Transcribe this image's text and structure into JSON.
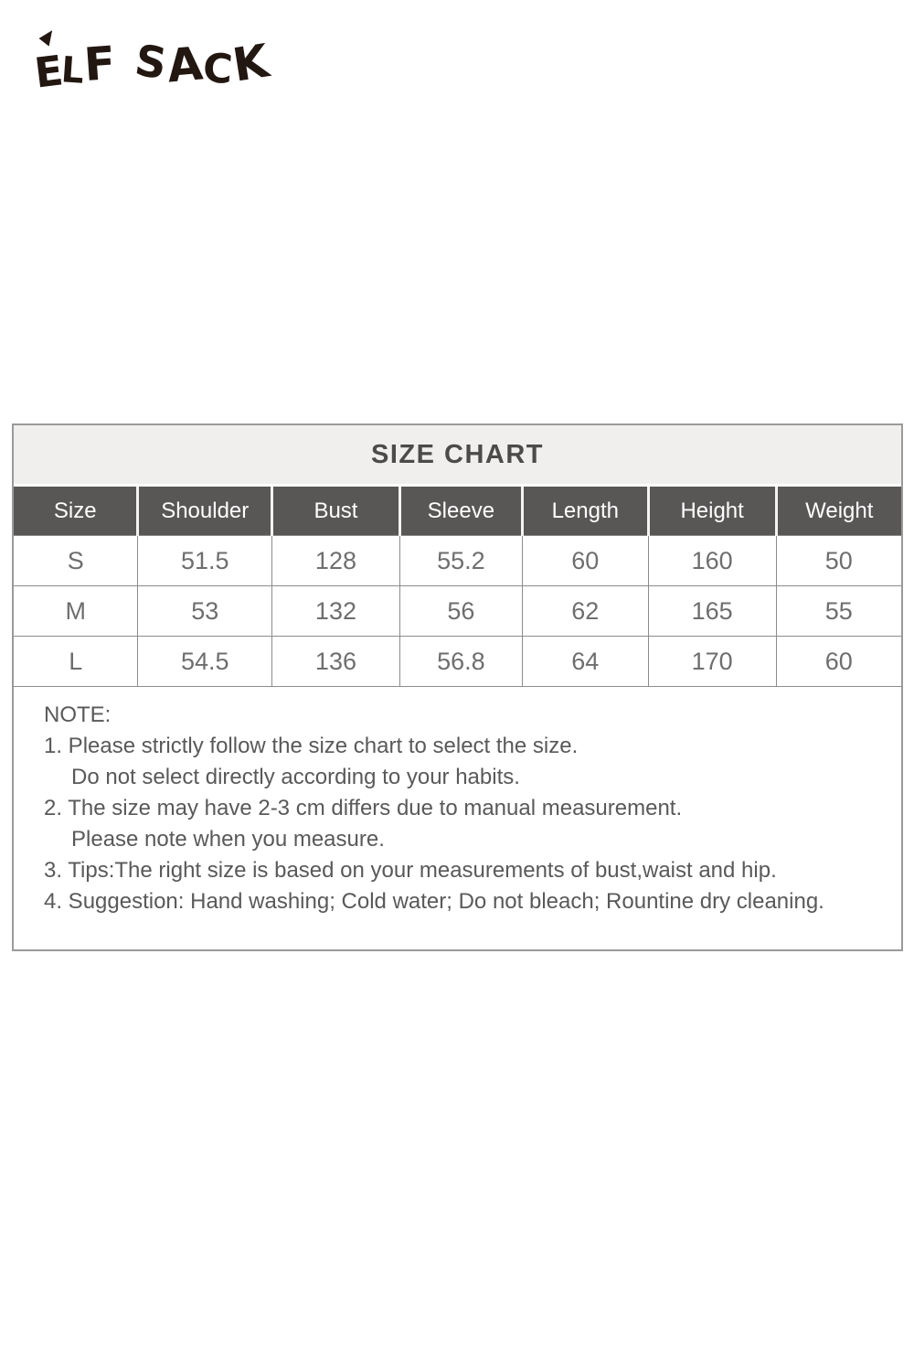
{
  "logo": {
    "brand": "ELF SACK",
    "letters": [
      "E",
      "L",
      "F",
      "S",
      "A",
      "C",
      "K"
    ]
  },
  "size_chart": {
    "title": "SIZE CHART",
    "columns": [
      "Size",
      "Shoulder",
      "Bust",
      "Sleeve",
      "Length",
      "Height",
      "Weight"
    ],
    "rows": [
      [
        "S",
        "51.5",
        "128",
        "55.2",
        "60",
        "160",
        "50"
      ],
      [
        "M",
        "53",
        "132",
        "56",
        "62",
        "165",
        "55"
      ],
      [
        "L",
        "54.5",
        "136",
        "56.8",
        "64",
        "170",
        "60"
      ]
    ]
  },
  "note": {
    "heading": "NOTE:",
    "lines": [
      {
        "text": "1. Please strictly follow the size chart to select the size.",
        "indent": false
      },
      {
        "text": "Do not select directly according to your habits.",
        "indent": true
      },
      {
        "text": "2. The size may have 2-3 cm differs due to manual measurement.",
        "indent": false
      },
      {
        "text": "Please note when you measure.",
        "indent": true
      },
      {
        "text": "3. Tips:The right size is based on your measurements of bust,waist and hip.",
        "indent": false
      },
      {
        "text": "4. Suggestion: Hand washing; Cold water; Do not bleach; Rountine dry cleaning.",
        "indent": false
      }
    ]
  },
  "colors": {
    "header_bg": "#595656",
    "header_text": "#ffffff",
    "title_band_bg": "#f0efee",
    "title_text": "#4d4a4a",
    "cell_text": "#6e6e6e",
    "note_text": "#595959",
    "cell_border": "#8c8c8c",
    "outer_border": "#9a9a9a",
    "logo_color": "#231712",
    "page_bg": "#ffffff"
  },
  "chart_data": {
    "type": "table",
    "title": "SIZE CHART",
    "columns": [
      "Size",
      "Shoulder",
      "Bust",
      "Sleeve",
      "Length",
      "Height",
      "Weight"
    ],
    "rows": [
      [
        "S",
        51.5,
        128,
        55.2,
        60,
        160,
        50
      ],
      [
        "M",
        53,
        132,
        56,
        62,
        165,
        55
      ],
      [
        "L",
        54.5,
        136,
        56.8,
        64,
        170,
        60
      ]
    ]
  }
}
